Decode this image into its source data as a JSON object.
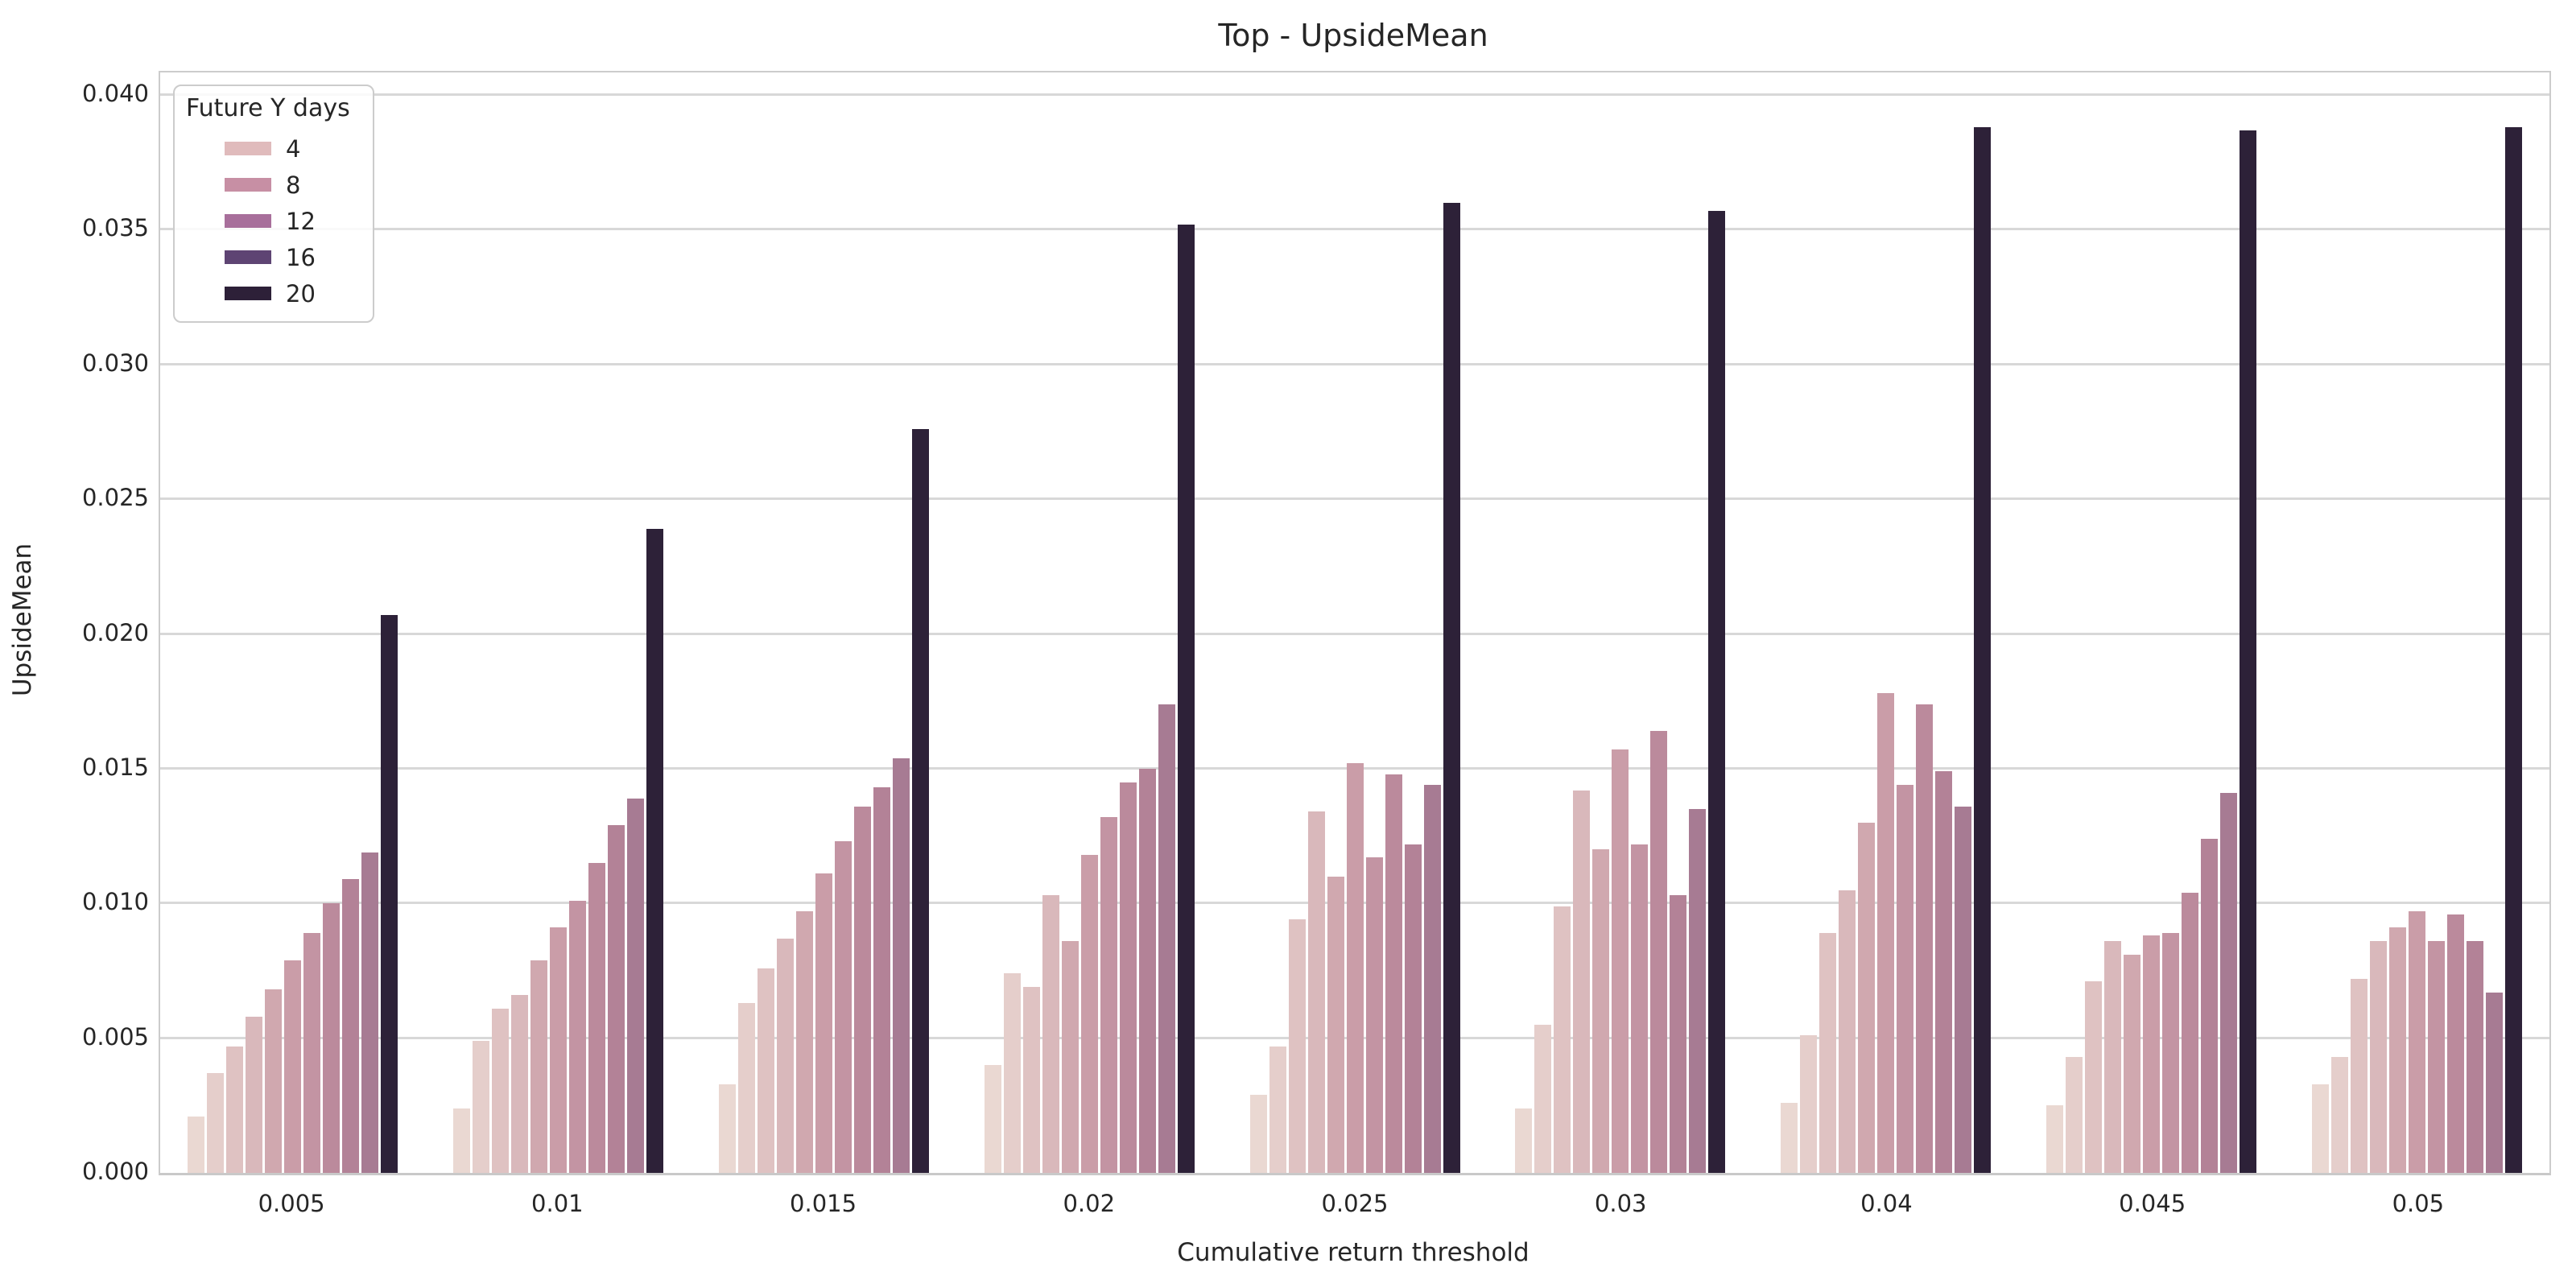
{
  "title": "Top - UpsideMean",
  "axes": {
    "x_label": "Cumulative return threshold",
    "y_label": "UpsideMean",
    "y_tick_labels": [
      "0.000",
      "0.005",
      "0.010",
      "0.015",
      "0.020",
      "0.025",
      "0.030",
      "0.035",
      "0.040"
    ],
    "x_tick_labels": [
      "0.005",
      "0.01",
      "0.015",
      "0.02",
      "0.025",
      "0.03",
      "0.04",
      "0.045",
      "0.05"
    ]
  },
  "legend": {
    "title": "Future Y days",
    "entries": [
      {
        "label": "4",
        "color": "#e0bbbc"
      },
      {
        "label": "8",
        "color": "#c78fa4"
      },
      {
        "label": "12",
        "color": "#a86f9b"
      },
      {
        "label": "16",
        "color": "#5e4473"
      },
      {
        "label": "20",
        "color": "#2d2038"
      }
    ]
  },
  "colors": {
    "grid": "#d8d8d8",
    "spine": "#cccccc",
    "text": "#262626",
    "background": "#ffffff"
  },
  "chart_data": {
    "type": "bar",
    "title": "Top - UpsideMean",
    "xlabel": "Cumulative return threshold",
    "ylabel": "UpsideMean",
    "ylim": [
      0,
      0.04
    ],
    "grid": true,
    "legend_position": "upper left",
    "legend_title": "Future Y days",
    "legend_values": [
      4,
      8,
      12,
      16,
      20
    ],
    "bars_per_group": 11,
    "bar_colors": [
      "#ead8d2",
      "#e5cecb",
      "#dfc2c2",
      "#d9b8bb",
      "#d0a8af",
      "#ca9da8",
      "#c394a3",
      "#bb8a9c",
      "#b38297",
      "#a77b93",
      "#2d2138"
    ],
    "categories": [
      "0.005",
      "0.01",
      "0.015",
      "0.02",
      "0.025",
      "0.03",
      "0.04",
      "0.045",
      "0.05"
    ],
    "groups": [
      {
        "category": "0.005",
        "values": [
          0.0021,
          0.0037,
          0.0047,
          0.0058,
          0.0068,
          0.0079,
          0.0089,
          0.01,
          0.0109,
          0.0119,
          0.0207
        ]
      },
      {
        "category": "0.01",
        "values": [
          0.0024,
          0.0049,
          0.0061,
          0.0066,
          0.0079,
          0.0091,
          0.0101,
          0.0115,
          0.0129,
          0.0139,
          0.0239
        ]
      },
      {
        "category": "0.015",
        "values": [
          0.0033,
          0.0063,
          0.0076,
          0.0087,
          0.0097,
          0.0111,
          0.0123,
          0.0136,
          0.0143,
          0.0154,
          0.0276
        ]
      },
      {
        "category": "0.02",
        "values": [
          0.004,
          0.0074,
          0.0069,
          0.0103,
          0.0086,
          0.0118,
          0.0132,
          0.0145,
          0.015,
          0.0174,
          0.0352
        ]
      },
      {
        "category": "0.025",
        "values": [
          0.0029,
          0.0047,
          0.0094,
          0.0134,
          0.011,
          0.0152,
          0.0117,
          0.0148,
          0.0122,
          0.0144,
          0.036
        ]
      },
      {
        "category": "0.03",
        "values": [
          0.0024,
          0.0055,
          0.0099,
          0.0142,
          0.012,
          0.0157,
          0.0122,
          0.0164,
          0.0103,
          0.0135,
          0.0357
        ]
      },
      {
        "category": "0.04",
        "values": [
          0.0026,
          0.0051,
          0.0089,
          0.0105,
          0.013,
          0.0178,
          0.0144,
          0.0174,
          0.0149,
          0.0136,
          0.0388
        ]
      },
      {
        "category": "0.045",
        "values": [
          0.0025,
          0.0043,
          0.0071,
          0.0086,
          0.0081,
          0.0088,
          0.0089,
          0.0104,
          0.0124,
          0.0141,
          0.0387
        ]
      },
      {
        "category": "0.05",
        "values": [
          0.0033,
          0.0043,
          0.0072,
          0.0086,
          0.0091,
          0.0097,
          0.0086,
          0.0096,
          0.0086,
          0.0067,
          0.0388
        ]
      }
    ]
  }
}
